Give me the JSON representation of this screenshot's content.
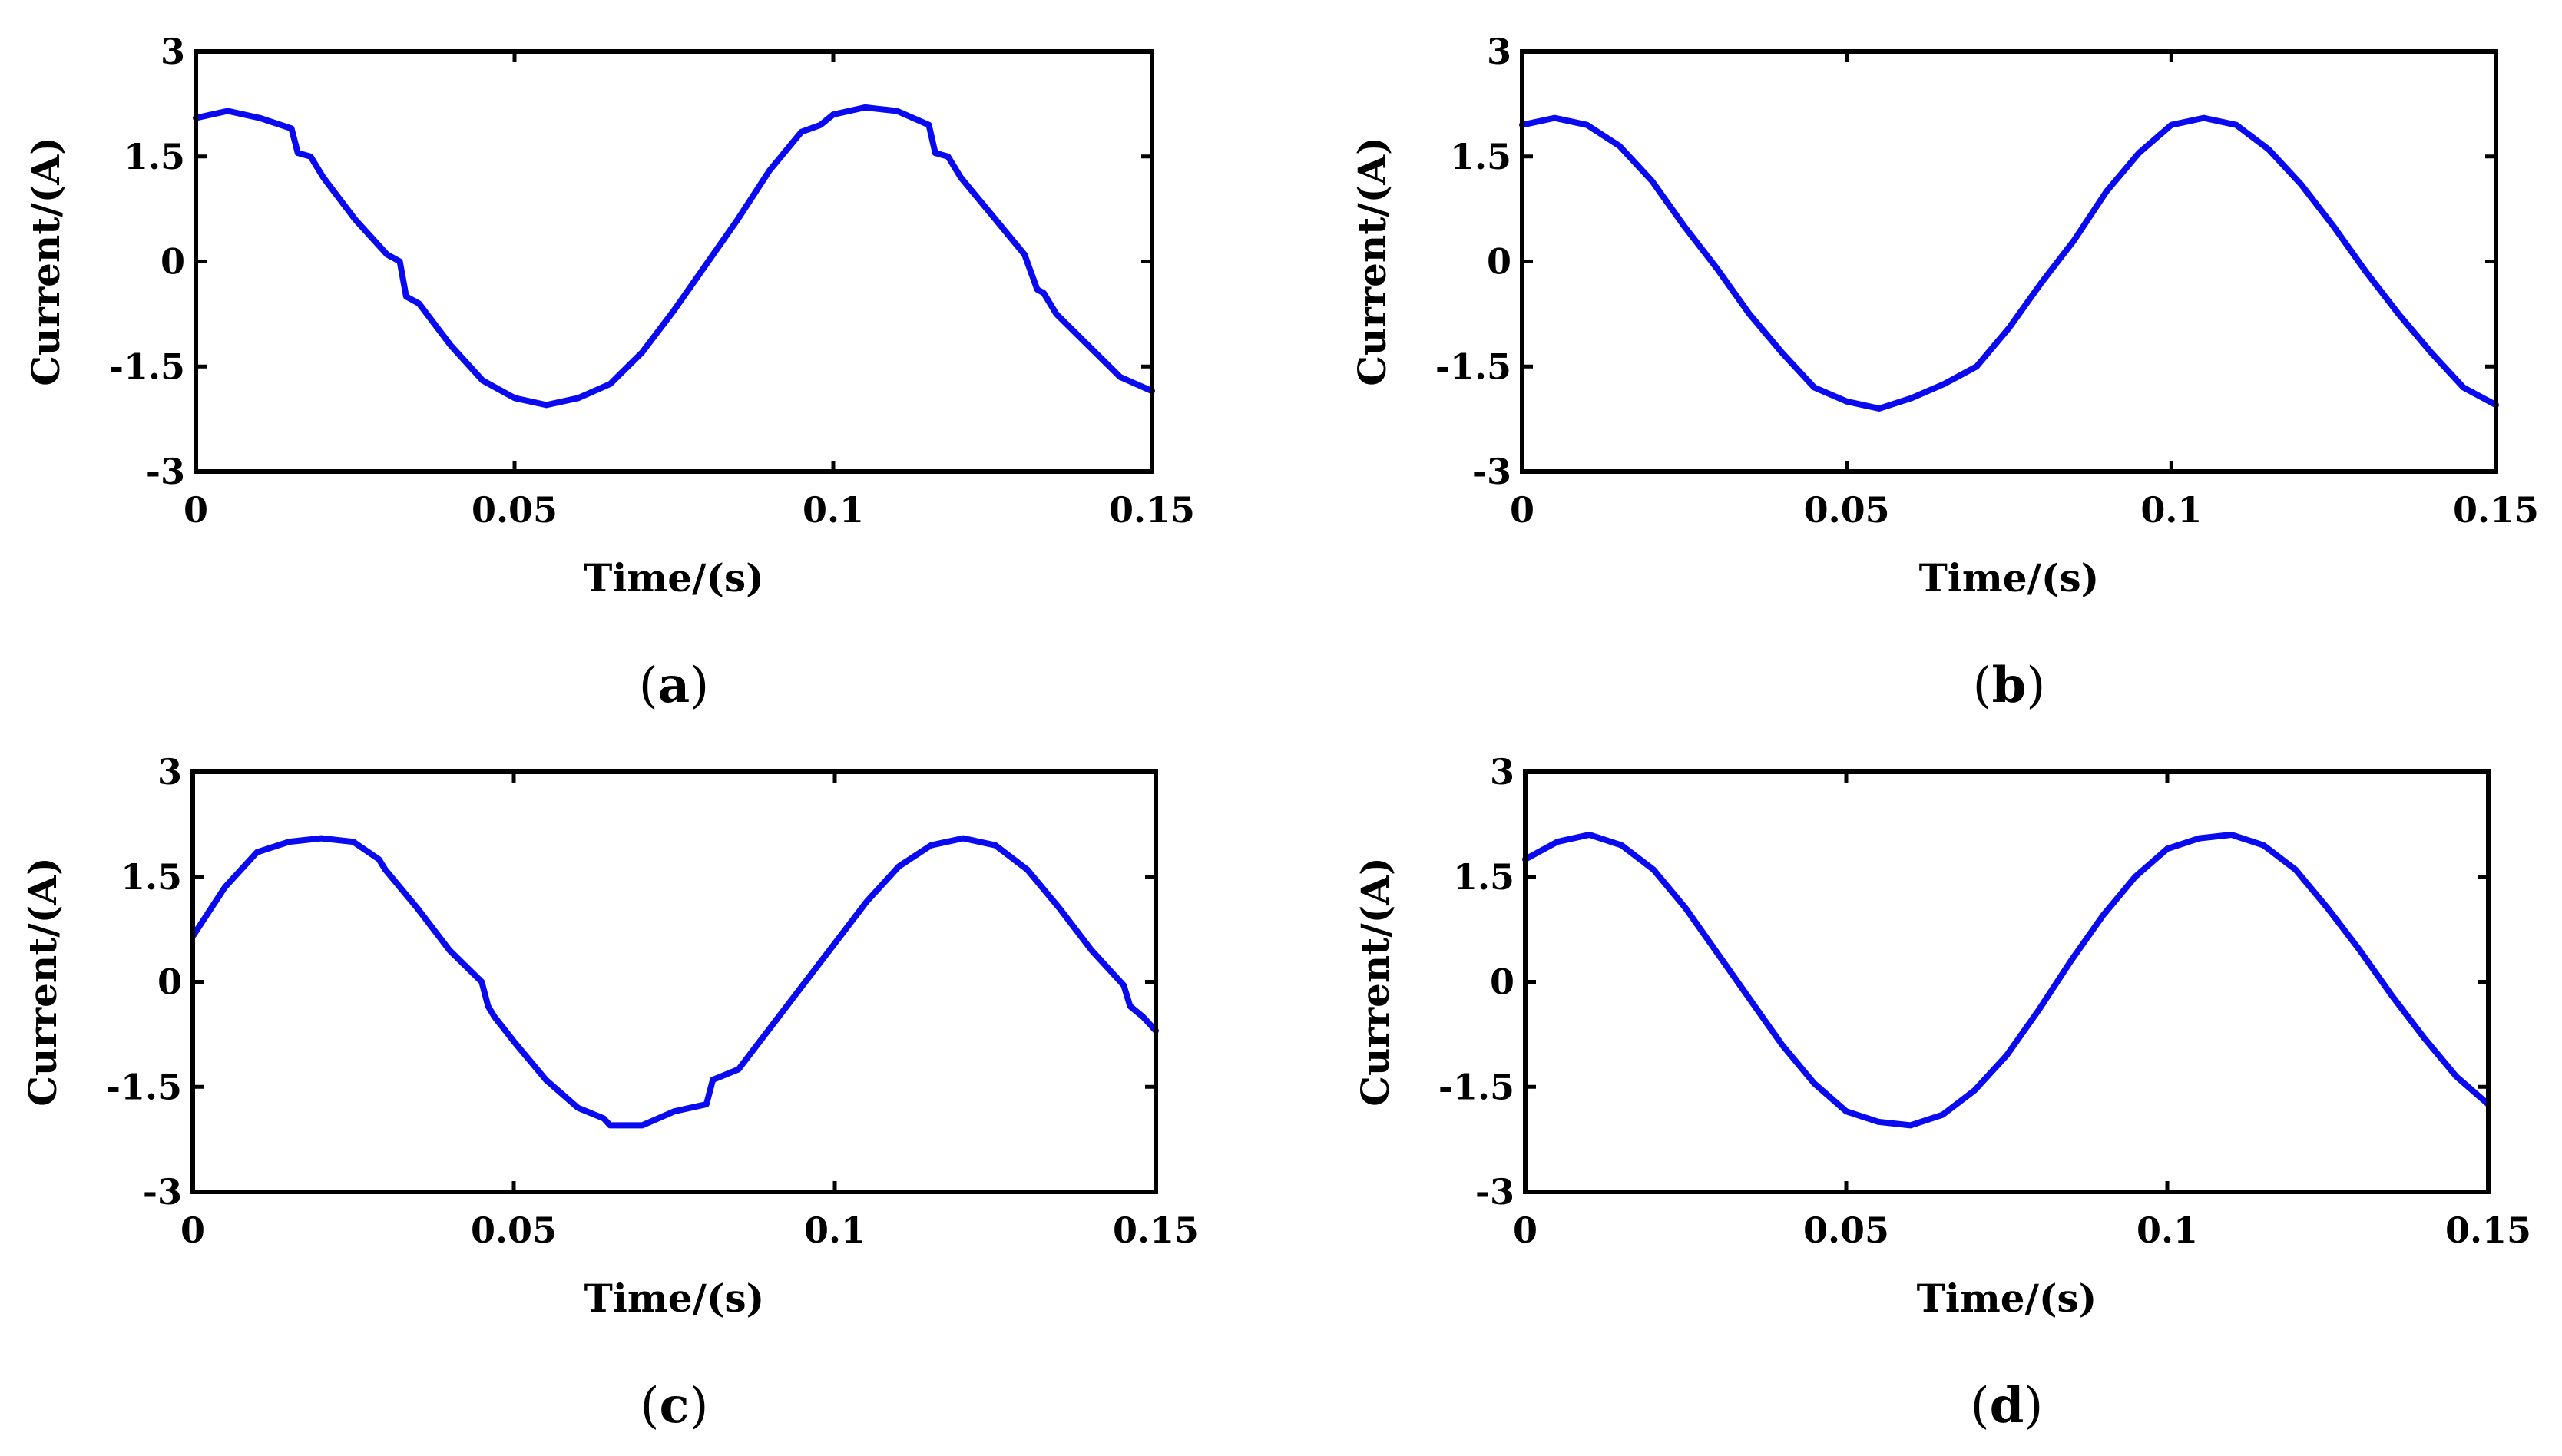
{
  "chart_data": [
    {
      "type": "line",
      "caption_letter": "a",
      "xlabel": "Time/(s)",
      "ylabel": "Current/(A)",
      "xlim": [
        0,
        0.15
      ],
      "ylim": [
        -3,
        3
      ],
      "xticks": [
        "0",
        "0.05",
        "0.1",
        "0.15"
      ],
      "yticks": [
        "3",
        "1.5",
        "0",
        "-1.5",
        "-3"
      ],
      "grid": false,
      "color": "#0a0af0",
      "series": [
        {
          "name": "current",
          "x": [
            0,
            0.005,
            0.01,
            0.015,
            0.016,
            0.018,
            0.02,
            0.025,
            0.03,
            0.032,
            0.033,
            0.035,
            0.04,
            0.045,
            0.05,
            0.055,
            0.06,
            0.065,
            0.07,
            0.075,
            0.08,
            0.085,
            0.09,
            0.095,
            0.098,
            0.1,
            0.105,
            0.11,
            0.115,
            0.116,
            0.118,
            0.12,
            0.125,
            0.13,
            0.132,
            0.133,
            0.135,
            0.14,
            0.145,
            0.15
          ],
          "y": [
            2.05,
            2.15,
            2.05,
            1.9,
            1.55,
            1.5,
            1.2,
            0.6,
            0.1,
            0.0,
            -0.5,
            -0.6,
            -1.2,
            -1.7,
            -1.95,
            -2.05,
            -1.95,
            -1.75,
            -1.3,
            -0.7,
            -0.05,
            0.6,
            1.3,
            1.85,
            1.95,
            2.1,
            2.2,
            2.15,
            1.95,
            1.55,
            1.5,
            1.2,
            0.65,
            0.1,
            -0.4,
            -0.45,
            -0.75,
            -1.2,
            -1.65,
            -1.85
          ]
        }
      ]
    },
    {
      "type": "line",
      "caption_letter": "b",
      "xlabel": "Time/(s)",
      "ylabel": "Current/(A)",
      "xlim": [
        0,
        0.15
      ],
      "ylim": [
        -3,
        3
      ],
      "xticks": [
        "0",
        "0.05",
        "0.1",
        "0.15"
      ],
      "yticks": [
        "3",
        "1.5",
        "0",
        "-1.5",
        "-3"
      ],
      "grid": false,
      "color": "#0a0af0",
      "series": [
        {
          "name": "current",
          "x": [
            0,
            0.005,
            0.01,
            0.015,
            0.02,
            0.025,
            0.03,
            0.035,
            0.04,
            0.045,
            0.05,
            0.055,
            0.06,
            0.065,
            0.07,
            0.075,
            0.08,
            0.085,
            0.09,
            0.095,
            0.1,
            0.105,
            0.11,
            0.115,
            0.12,
            0.125,
            0.13,
            0.135,
            0.14,
            0.145,
            0.15
          ],
          "y": [
            1.95,
            2.05,
            1.95,
            1.65,
            1.15,
            0.5,
            -0.1,
            -0.75,
            -1.3,
            -1.8,
            -2.0,
            -2.1,
            -1.95,
            -1.75,
            -1.5,
            -0.95,
            -0.3,
            0.3,
            1.0,
            1.55,
            1.95,
            2.05,
            1.95,
            1.6,
            1.1,
            0.5,
            -0.15,
            -0.75,
            -1.3,
            -1.8,
            -2.05
          ]
        }
      ]
    },
    {
      "type": "line",
      "caption_letter": "c",
      "xlabel": "Time/(s)",
      "ylabel": "Current/(A)",
      "xlim": [
        0,
        0.15
      ],
      "ylim": [
        -3,
        3
      ],
      "xticks": [
        "0",
        "0.05",
        "0.1",
        "0.15"
      ],
      "yticks": [
        "3",
        "1.5",
        "0",
        "-1.5",
        "-3"
      ],
      "grid": false,
      "color": "#0a0af0",
      "series": [
        {
          "name": "current",
          "x": [
            0,
            0.005,
            0.01,
            0.015,
            0.02,
            0.025,
            0.029,
            0.03,
            0.035,
            0.04,
            0.045,
            0.046,
            0.047,
            0.05,
            0.055,
            0.06,
            0.064,
            0.065,
            0.07,
            0.075,
            0.08,
            0.081,
            0.085,
            0.09,
            0.095,
            0.1,
            0.105,
            0.11,
            0.115,
            0.12,
            0.125,
            0.13,
            0.135,
            0.14,
            0.145,
            0.146,
            0.148,
            0.15
          ],
          "y": [
            0.65,
            1.35,
            1.85,
            2.0,
            2.05,
            2.0,
            1.75,
            1.6,
            1.05,
            0.45,
            -0.0,
            -0.35,
            -0.5,
            -0.85,
            -1.4,
            -1.8,
            -1.95,
            -2.05,
            -2.05,
            -1.85,
            -1.75,
            -1.4,
            -1.25,
            -0.65,
            -0.05,
            0.55,
            1.15,
            1.65,
            1.95,
            2.05,
            1.95,
            1.6,
            1.05,
            0.45,
            -0.05,
            -0.35,
            -0.5,
            -0.7
          ]
        }
      ]
    },
    {
      "type": "line",
      "caption_letter": "d",
      "xlabel": "Time/(s)",
      "ylabel": "Current/(A)",
      "xlim": [
        0,
        0.15
      ],
      "ylim": [
        -3,
        3
      ],
      "xticks": [
        "0",
        "0.05",
        "0.1",
        "0.15"
      ],
      "yticks": [
        "3",
        "1.5",
        "0",
        "-1.5",
        "-3"
      ],
      "grid": false,
      "color": "#0a0af0",
      "series": [
        {
          "name": "current",
          "x": [
            0,
            0.005,
            0.01,
            0.015,
            0.02,
            0.025,
            0.03,
            0.035,
            0.04,
            0.045,
            0.05,
            0.055,
            0.06,
            0.065,
            0.07,
            0.075,
            0.08,
            0.085,
            0.09,
            0.095,
            0.1,
            0.105,
            0.11,
            0.115,
            0.12,
            0.125,
            0.13,
            0.135,
            0.14,
            0.145,
            0.15
          ],
          "y": [
            1.75,
            2.0,
            2.1,
            1.95,
            1.6,
            1.05,
            0.4,
            -0.25,
            -0.9,
            -1.45,
            -1.85,
            -2.0,
            -2.05,
            -1.9,
            -1.55,
            -1.05,
            -0.4,
            0.3,
            0.95,
            1.5,
            1.9,
            2.05,
            2.1,
            1.95,
            1.6,
            1.05,
            0.45,
            -0.2,
            -0.8,
            -1.35,
            -1.75
          ]
        }
      ]
    }
  ]
}
